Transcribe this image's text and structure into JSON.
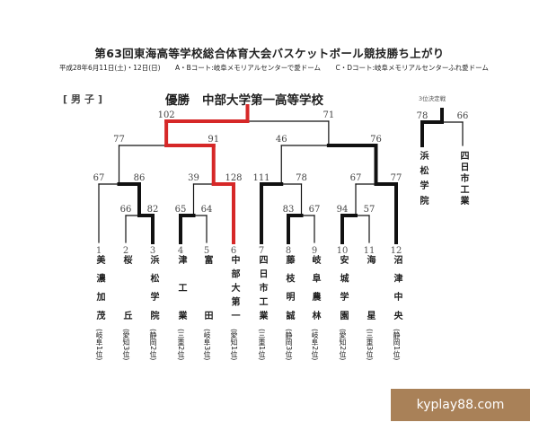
{
  "header": {
    "title": "第63回東海高等学校総合体育大会バスケットボール競技勝ち上がり",
    "date": "平成28年6月11日(土)・12日(日)",
    "court_ab": "A・Bコート:岐阜メモリアルセンターで愛ドーム",
    "court_cd": "C・Dコート:岐阜メモリアルセンターふれ愛ドーム"
  },
  "division": "[男子]",
  "champion": {
    "label": "優勝",
    "team": "中部大学第一高等学校"
  },
  "colors": {
    "champion_path": "#d62828",
    "line": "#111111",
    "watermark_bg": "#a98158"
  },
  "teams": [
    {
      "no": "1",
      "name": "美濃加茂",
      "pref": "(岐阜1位)"
    },
    {
      "no": "2",
      "name": "桜丘",
      "pref": "(愛知3位)"
    },
    {
      "no": "3",
      "name": "浜松学院",
      "pref": "(静岡2位)"
    },
    {
      "no": "4",
      "name": "津工業",
      "pref": "(三重2位)"
    },
    {
      "no": "5",
      "name": "富田",
      "pref": "(岐阜3位)"
    },
    {
      "no": "6",
      "name": "中部大第一",
      "pref": "(愛知1位)"
    },
    {
      "no": "7",
      "name": "四日市工業",
      "pref": "(三重1位)"
    },
    {
      "no": "8",
      "name": "藤枝明誠",
      "pref": "(静岡3位)"
    },
    {
      "no": "9",
      "name": "岐阜農林",
      "pref": "(岐阜2位)"
    },
    {
      "no": "10",
      "name": "安城学園",
      "pref": "(愛知2位)"
    },
    {
      "no": "11",
      "name": "海星",
      "pref": "(三重3位)"
    },
    {
      "no": "12",
      "name": "沼津中央",
      "pref": "(静岡1位)"
    }
  ],
  "matches": [
    {
      "id": "m1",
      "left": "2",
      "right": "3",
      "score_left": "66",
      "score_right": "82",
      "winner": "right"
    },
    {
      "id": "m2",
      "left": "4",
      "right": "5",
      "score_left": "65",
      "score_right": "64",
      "winner": "left"
    },
    {
      "id": "m3",
      "left": "8",
      "right": "9",
      "score_left": "83",
      "score_right": "67",
      "winner": "left"
    },
    {
      "id": "m4",
      "left": "10",
      "right": "11",
      "score_left": "94",
      "score_right": "57",
      "winner": "left"
    },
    {
      "id": "m5",
      "left": "1",
      "right": "m1",
      "score_left": "67",
      "score_right": "86",
      "winner": "right"
    },
    {
      "id": "m6",
      "left": "m2",
      "right": "6",
      "score_left": "39",
      "score_right": "128",
      "winner": "right"
    },
    {
      "id": "m7",
      "left": "7",
      "right": "m3",
      "score_left": "111",
      "score_right": "78",
      "winner": "left"
    },
    {
      "id": "m8",
      "left": "m4",
      "right": "12",
      "score_left": "67",
      "score_right": "77",
      "winner": "right"
    },
    {
      "id": "m9",
      "left": "m5",
      "right": "m6",
      "score_left": "77",
      "score_right": "91",
      "winner": "right"
    },
    {
      "id": "m10",
      "left": "m7",
      "right": "m8",
      "score_left": "46",
      "score_right": "76",
      "winner": "right"
    },
    {
      "id": "final",
      "left": "m9",
      "right": "m10",
      "score_left": "102",
      "score_right": "71",
      "winner": "left"
    }
  ],
  "third_place": {
    "title": "3位決定戦",
    "left": {
      "name": "浜松学院",
      "score": "78"
    },
    "right": {
      "name": "四日市工業",
      "score": "66"
    },
    "winner": "left"
  },
  "watermark": "kyplay88.com"
}
